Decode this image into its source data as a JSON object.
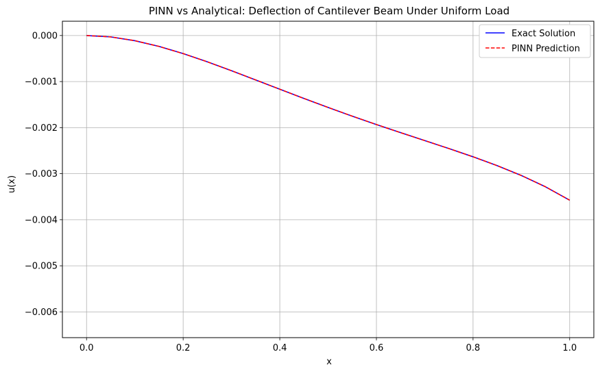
{
  "chart_data": {
    "type": "line",
    "title": "PINN vs Analytical: Deflection of Cantilever Beam Under Uniform Load",
    "xlabel": "x",
    "ylabel": "u(x)",
    "xlim": [
      -0.05,
      1.05
    ],
    "ylim": [
      -0.00656,
      0.00031
    ],
    "xticks": [
      0.0,
      0.2,
      0.4,
      0.6,
      0.8,
      1.0
    ],
    "xtick_labels": [
      "0.0",
      "0.2",
      "0.4",
      "0.6",
      "0.8",
      "1.0"
    ],
    "yticks": [
      0.0,
      -0.001,
      -0.002,
      -0.003,
      -0.004,
      -0.005,
      -0.006
    ],
    "ytick_labels": [
      "0.000",
      "−0.001",
      "−0.002",
      "−0.003",
      "−0.004",
      "−0.005",
      "−0.006"
    ],
    "grid": true,
    "legend_position": "top-right",
    "x": [
      0.0,
      0.05,
      0.1,
      0.15,
      0.2,
      0.25,
      0.3,
      0.35,
      0.4,
      0.45,
      0.5,
      0.55,
      0.6,
      0.65,
      0.7,
      0.75,
      0.8,
      0.85,
      0.9,
      0.95,
      1.0
    ],
    "series": [
      {
        "name": "Exact Solution",
        "color": "#0000ff",
        "style": "solid",
        "values": [
          0.0,
          -3.02e-05,
          -0.0001128,
          -0.0002369,
          -0.0003927,
          -0.0005712,
          -0.0007641,
          -0.0009644,
          -0.0011667,
          -0.0013671,
          -0.0015625,
          -0.0017513,
          -0.0019332,
          -0.002109,
          -0.0022814,
          -0.0024543,
          -0.0026333,
          -0.0028255,
          -0.0030393,
          -0.0032853,
          -0.0035753
        ]
      },
      {
        "name": "PINN Prediction",
        "color": "#ff0000",
        "style": "dashed",
        "values": [
          0.0,
          -3.02e-05,
          -0.0001128,
          -0.0002369,
          -0.0003927,
          -0.0005712,
          -0.0007641,
          -0.0009644,
          -0.0011667,
          -0.0013671,
          -0.0015625,
          -0.0017513,
          -0.0019332,
          -0.002109,
          -0.0022814,
          -0.0024543,
          -0.0026333,
          -0.0028255,
          -0.0030393,
          -0.0032853,
          -0.0035753
        ]
      }
    ]
  }
}
